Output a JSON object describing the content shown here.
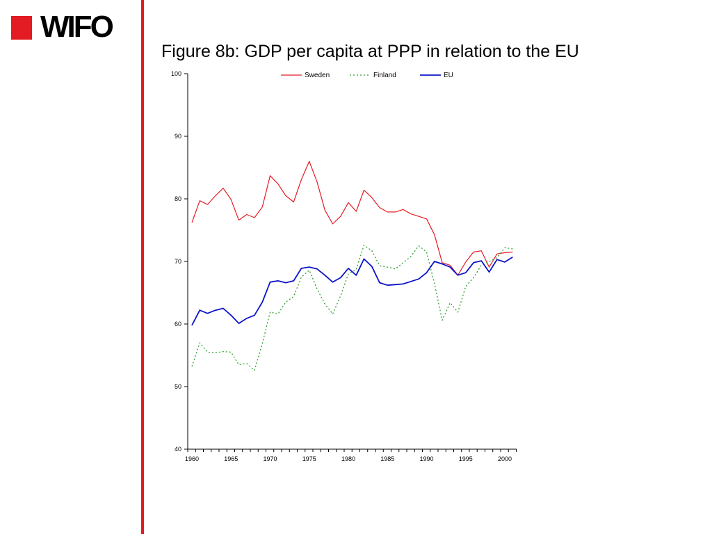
{
  "logo": {
    "text": "WIFO",
    "square_color": "#e31b23"
  },
  "slide": {
    "title": "Figure 8b: GDP per capita at PPP in relation to the EU",
    "divider_color": "#e31b23"
  },
  "chart_data": {
    "type": "line",
    "title": "",
    "xlabel": "",
    "ylabel": "",
    "xlim": [
      1960,
      2002
    ],
    "ylim": [
      40,
      100
    ],
    "x_ticks": [
      "1960",
      "1965",
      "1970",
      "1975",
      "1980",
      "1985",
      "1990",
      "1995",
      "2000"
    ],
    "y_ticks": [
      "40",
      "50",
      "60",
      "70",
      "80",
      "90",
      "100"
    ],
    "grid": false,
    "legend_position": "top-center",
    "x": [
      1960,
      1961,
      1962,
      1963,
      1964,
      1965,
      1966,
      1967,
      1968,
      1969,
      1970,
      1971,
      1972,
      1973,
      1974,
      1975,
      1976,
      1977,
      1978,
      1979,
      1980,
      1981,
      1982,
      1983,
      1984,
      1985,
      1986,
      1987,
      1988,
      1989,
      1990,
      1991,
      1992,
      1993,
      1994,
      1995,
      1996,
      1997,
      1998,
      1999,
      2000,
      2001
    ],
    "series": [
      {
        "name": "Sweden",
        "color": "#e31b23",
        "style": "solid",
        "values": [
          76.2,
          79.7,
          79.1,
          80.5,
          81.7,
          79.9,
          76.6,
          77.5,
          77.0,
          78.7,
          83.7,
          82.4,
          80.5,
          79.5,
          83.1,
          86.0,
          82.7,
          78.2,
          76.0,
          77.2,
          79.4,
          78.0,
          81.4,
          80.2,
          78.6,
          77.9,
          77.9,
          78.3,
          77.6,
          77.2,
          76.8,
          74.3,
          69.8,
          69.4,
          67.8,
          69.9,
          71.5,
          71.7,
          69.1,
          71.2,
          71.4,
          71.5
        ]
      },
      {
        "name": "Finland",
        "color": "#2e9e2e",
        "style": "dotted",
        "values": [
          53.2,
          57.0,
          55.5,
          55.4,
          55.6,
          55.5,
          53.5,
          53.7,
          52.6,
          56.9,
          61.9,
          61.6,
          63.5,
          64.4,
          67.5,
          68.6,
          65.6,
          63.2,
          61.6,
          64.5,
          68.0,
          68.7,
          72.6,
          71.7,
          69.3,
          69.1,
          68.8,
          69.8,
          70.8,
          72.5,
          71.5,
          66.5,
          60.6,
          63.4,
          61.9,
          66.0,
          67.4,
          69.4,
          70.0,
          70.6,
          72.2,
          72.0
        ]
      },
      {
        "name": "EU",
        "color": "#0b14c8",
        "style": "solid",
        "values": [
          59.8,
          62.2,
          61.7,
          62.2,
          62.5,
          61.4,
          60.1,
          60.9,
          61.4,
          63.5,
          66.7,
          66.9,
          66.6,
          66.9,
          68.9,
          69.1,
          68.8,
          67.8,
          66.7,
          67.4,
          68.9,
          67.8,
          70.4,
          69.2,
          66.6,
          66.2,
          66.3,
          66.4,
          66.8,
          67.2,
          68.2,
          70.0,
          69.6,
          69.1,
          67.8,
          68.2,
          69.8,
          70.1,
          68.3,
          70.3,
          69.9,
          70.7
        ]
      }
    ]
  }
}
